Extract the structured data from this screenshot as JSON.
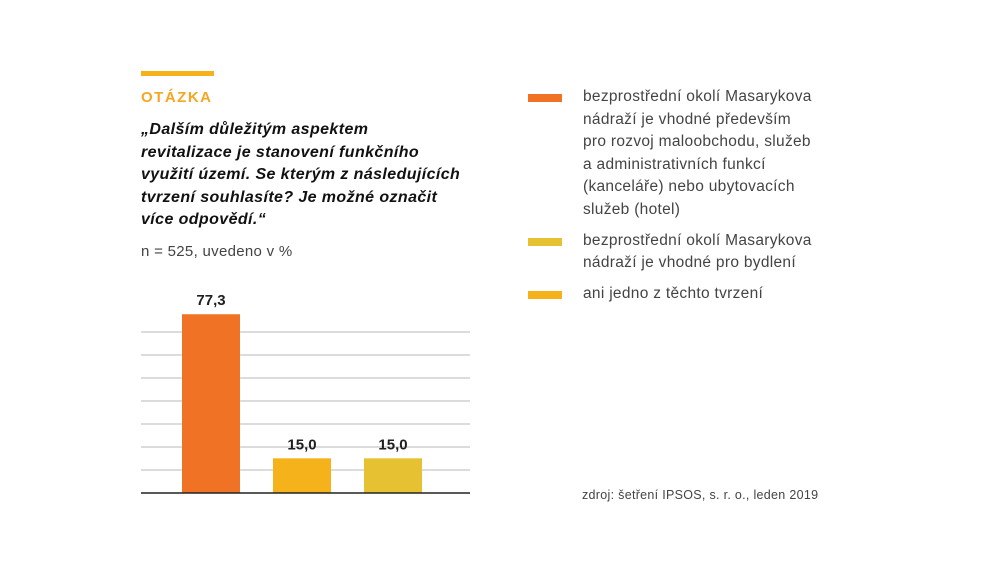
{
  "header": {
    "label": "OTÁZKA",
    "question_lines": [
      "„Dalším důležitým aspektem",
      "revitalizace je stanovení funkčního",
      "využití území. Se kterým z následujících",
      "tvrzení souhlasíte? Je možné označit",
      "více odpovědí.“"
    ],
    "note": "n = 525, uvedeno v %"
  },
  "colors": {
    "accent": "#f5b21b",
    "label": "#f5a623"
  },
  "chart_data": {
    "type": "bar",
    "categories": [
      "bezprostřední okolí Masarykova nádraží je vhodné především pro rozvoj maloobchodu, služeb a administrativních funkcí (kanceláře) nebo ubytovacích služeb (hotel)",
      "ani jedno z těchto tvrzení",
      "bezprostřední okolí Masarykova nádraží je vhodné pro bydlení"
    ],
    "values": [
      77.3,
      15.0,
      15.0
    ],
    "value_labels": [
      "77,3",
      "15,0",
      "15,0"
    ],
    "colors": [
      "#f07224",
      "#f5b21b",
      "#e6c232"
    ],
    "ylim": [
      0,
      80
    ],
    "grid": true,
    "legend_placement": "right"
  },
  "legend": {
    "items": [
      {
        "lines": [
          "bezprostřední okolí Masarykova",
          "nádraží je vhodné především",
          "pro rozvoj maloobchodu, služeb",
          "a administrativních funkcí",
          "(kanceláře) nebo ubytovacích",
          "služeb (hotel)"
        ],
        "color": "#f07224"
      },
      {
        "lines": [
          "bezprostřední okolí Masarykova",
          "nádraží je vhodné pro bydlení"
        ],
        "color": "#e6c232"
      },
      {
        "lines": [
          "ani jedno z těchto tvrzení"
        ],
        "color": "#f5b21b"
      }
    ]
  },
  "source": "zdroj: šetření IPSOS, s. r. o., leden 2019"
}
